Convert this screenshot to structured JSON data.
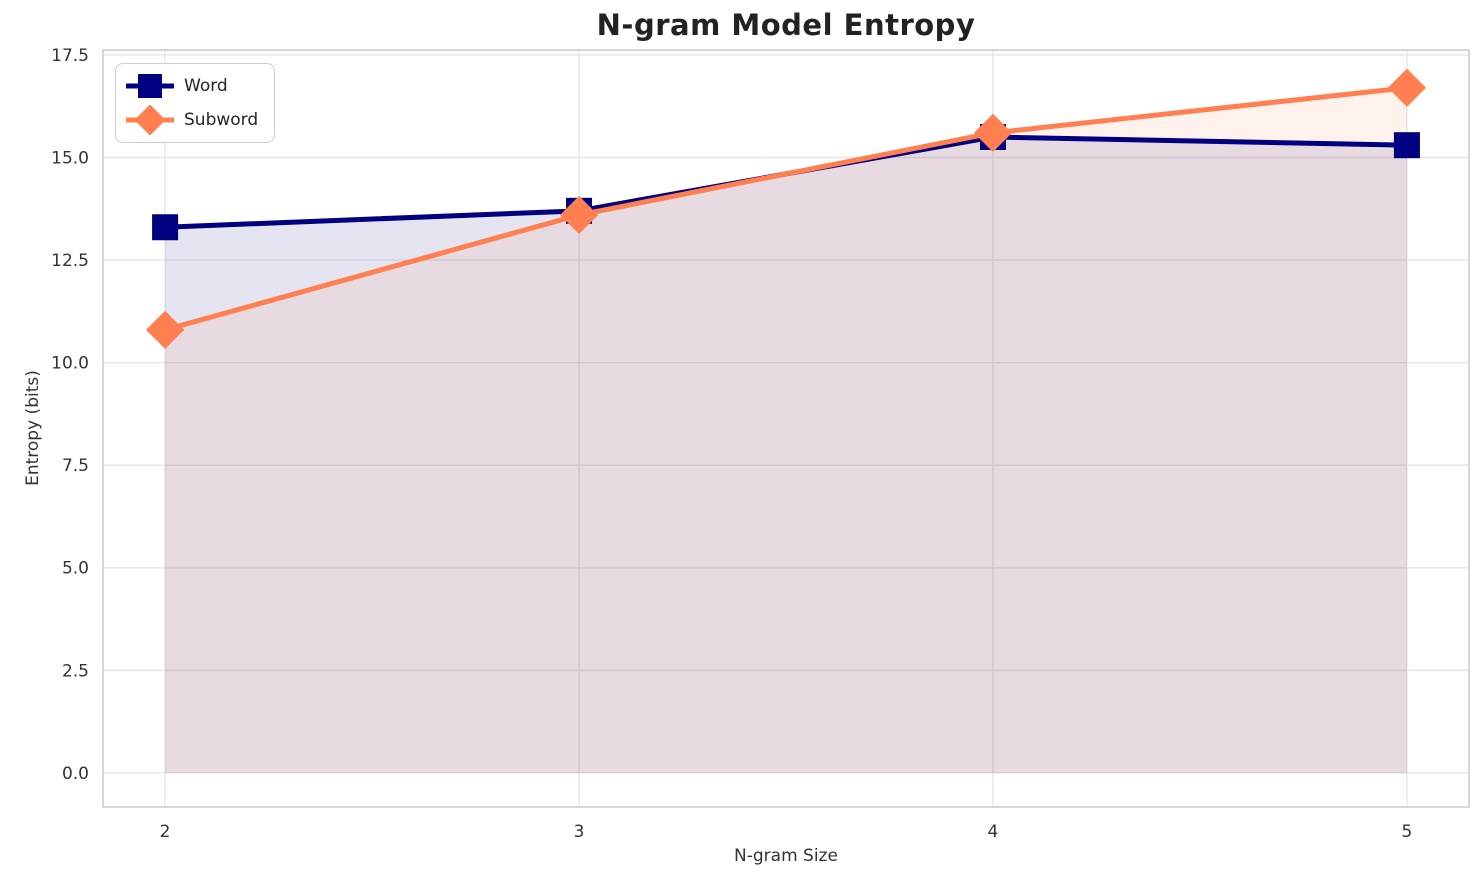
{
  "chart_data": {
    "type": "line",
    "title": "N-gram Model Entropy",
    "xlabel": "N-gram Size",
    "ylabel": "Entropy (bits)",
    "x": [
      2,
      3,
      4,
      5
    ],
    "series": [
      {
        "name": "Word",
        "values": [
          13.3,
          13.7,
          15.5,
          15.3
        ],
        "color": "#000080",
        "marker": "square",
        "fill_to_zero": true,
        "fill_opacity": 0.1
      },
      {
        "name": "Subword",
        "values": [
          10.8,
          13.6,
          15.6,
          16.7
        ],
        "color": "#FF7F50",
        "marker": "diamond",
        "fill_to_zero": true,
        "fill_opacity": 0.1
      }
    ],
    "xtick_labels": [
      "2",
      "3",
      "4",
      "5"
    ],
    "xtick_values": [
      2,
      3,
      4,
      5
    ],
    "ytick_labels": [
      "0.0",
      "2.5",
      "5.0",
      "7.5",
      "10.0",
      "12.5",
      "15.0",
      "17.5"
    ],
    "ytick_values": [
      0,
      2.5,
      5,
      7.5,
      10,
      12.5,
      15,
      17.5
    ],
    "xlim": [
      1.85,
      5.15
    ],
    "ylim": [
      -0.83,
      17.62
    ],
    "grid": true,
    "grid_color": "#e6e6e6",
    "spine_color": "#cccccc",
    "legend_position": "upper left",
    "line_width": 5
  }
}
